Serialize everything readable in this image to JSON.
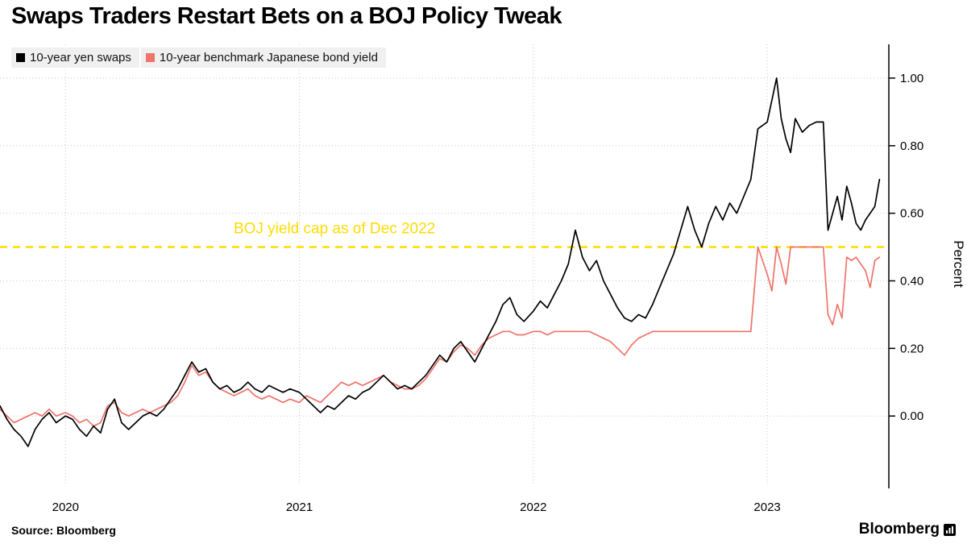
{
  "title": "Swaps Traders Restart Bets on a BOJ Policy Tweak",
  "legend": [
    {
      "label": "10-year yen swaps",
      "color": "#000000"
    },
    {
      "label": "10-year benchmark Japanese bond yield",
      "color": "#f0736c"
    }
  ],
  "source": "Source: Bloomberg",
  "brand": "Bloomberg",
  "colors": {
    "grid": "#c9c9c9",
    "axis": "#000000",
    "annotation_yellow": "#ffdc00"
  },
  "chart_data": {
    "type": "line",
    "title": "Swaps Traders Restart Bets on a BOJ Policy Tweak",
    "xlabel": "",
    "ylabel": "Percent",
    "xlim": [
      2019.72,
      2023.52
    ],
    "ylim": [
      -0.2,
      1.1
    ],
    "xticks": [
      2020,
      2021,
      2022,
      2023
    ],
    "yticks": [
      0.0,
      0.2,
      0.4,
      0.6,
      0.8,
      1.0
    ],
    "grid": true,
    "legend_position": "top-left",
    "reference_line": {
      "value": 0.5,
      "label": "BOJ yield cap as of Dec 2022",
      "label_x": 2021.15,
      "style": "dashed",
      "color": "#ffdc00"
    },
    "series": [
      {
        "name": "10-year yen swaps",
        "color": "#000000",
        "x": [
          2019.72,
          2019.75,
          2019.78,
          2019.81,
          2019.84,
          2019.87,
          2019.9,
          2019.93,
          2019.96,
          2020.0,
          2020.03,
          2020.06,
          2020.09,
          2020.12,
          2020.15,
          2020.18,
          2020.21,
          2020.24,
          2020.27,
          2020.3,
          2020.33,
          2020.36,
          2020.39,
          2020.42,
          2020.45,
          2020.48,
          2020.51,
          2020.54,
          2020.57,
          2020.6,
          2020.63,
          2020.66,
          2020.69,
          2020.72,
          2020.75,
          2020.78,
          2020.81,
          2020.84,
          2020.87,
          2020.9,
          2020.93,
          2020.96,
          2021.0,
          2021.03,
          2021.06,
          2021.09,
          2021.12,
          2021.15,
          2021.18,
          2021.21,
          2021.24,
          2021.27,
          2021.3,
          2021.33,
          2021.36,
          2021.39,
          2021.42,
          2021.45,
          2021.48,
          2021.51,
          2021.54,
          2021.57,
          2021.6,
          2021.63,
          2021.66,
          2021.69,
          2021.72,
          2021.75,
          2021.78,
          2021.81,
          2021.84,
          2021.87,
          2021.9,
          2021.93,
          2021.96,
          2022.0,
          2022.03,
          2022.06,
          2022.09,
          2022.12,
          2022.15,
          2022.18,
          2022.21,
          2022.24,
          2022.27,
          2022.3,
          2022.33,
          2022.36,
          2022.39,
          2022.42,
          2022.45,
          2022.48,
          2022.51,
          2022.54,
          2022.57,
          2022.6,
          2022.63,
          2022.66,
          2022.69,
          2022.72,
          2022.75,
          2022.78,
          2022.81,
          2022.84,
          2022.87,
          2022.9,
          2022.93,
          2022.96,
          2023.0,
          2023.04,
          2023.06,
          2023.08,
          2023.1,
          2023.12,
          2023.15,
          2023.18,
          2023.21,
          2023.24,
          2023.26,
          2023.28,
          2023.3,
          2023.32,
          2023.34,
          2023.36,
          2023.38,
          2023.4,
          2023.42,
          2023.44,
          2023.46,
          2023.48
        ],
        "y": [
          0.03,
          -0.01,
          -0.04,
          -0.06,
          -0.09,
          -0.04,
          -0.01,
          0.01,
          -0.02,
          0.0,
          -0.01,
          -0.04,
          -0.06,
          -0.03,
          -0.05,
          0.02,
          0.05,
          -0.02,
          -0.04,
          -0.02,
          0.0,
          0.01,
          0.0,
          0.02,
          0.05,
          0.08,
          0.12,
          0.16,
          0.13,
          0.14,
          0.1,
          0.08,
          0.09,
          0.07,
          0.08,
          0.1,
          0.08,
          0.07,
          0.09,
          0.08,
          0.07,
          0.08,
          0.07,
          0.05,
          0.03,
          0.01,
          0.03,
          0.02,
          0.04,
          0.06,
          0.05,
          0.07,
          0.08,
          0.1,
          0.12,
          0.1,
          0.08,
          0.09,
          0.08,
          0.1,
          0.12,
          0.15,
          0.18,
          0.16,
          0.2,
          0.22,
          0.19,
          0.16,
          0.2,
          0.24,
          0.28,
          0.33,
          0.35,
          0.3,
          0.28,
          0.31,
          0.34,
          0.32,
          0.36,
          0.4,
          0.45,
          0.55,
          0.47,
          0.43,
          0.46,
          0.4,
          0.36,
          0.32,
          0.29,
          0.28,
          0.3,
          0.29,
          0.33,
          0.38,
          0.43,
          0.48,
          0.55,
          0.62,
          0.55,
          0.5,
          0.57,
          0.62,
          0.58,
          0.63,
          0.6,
          0.65,
          0.7,
          0.85,
          0.87,
          1.0,
          0.88,
          0.82,
          0.78,
          0.88,
          0.84,
          0.86,
          0.87,
          0.87,
          0.55,
          0.6,
          0.65,
          0.58,
          0.68,
          0.63,
          0.57,
          0.55,
          0.58,
          0.6,
          0.62,
          0.7
        ]
      },
      {
        "name": "10-year benchmark Japanese bond yield",
        "color": "#f0736c",
        "x": [
          2019.72,
          2019.75,
          2019.78,
          2019.81,
          2019.84,
          2019.87,
          2019.9,
          2019.93,
          2019.96,
          2020.0,
          2020.03,
          2020.06,
          2020.09,
          2020.12,
          2020.15,
          2020.18,
          2020.21,
          2020.24,
          2020.27,
          2020.3,
          2020.33,
          2020.36,
          2020.39,
          2020.42,
          2020.45,
          2020.48,
          2020.51,
          2020.54,
          2020.57,
          2020.6,
          2020.63,
          2020.66,
          2020.69,
          2020.72,
          2020.75,
          2020.78,
          2020.81,
          2020.84,
          2020.87,
          2020.9,
          2020.93,
          2020.96,
          2021.0,
          2021.03,
          2021.06,
          2021.09,
          2021.12,
          2021.15,
          2021.18,
          2021.21,
          2021.24,
          2021.27,
          2021.3,
          2021.33,
          2021.36,
          2021.39,
          2021.42,
          2021.45,
          2021.48,
          2021.51,
          2021.54,
          2021.57,
          2021.6,
          2021.63,
          2021.66,
          2021.69,
          2021.72,
          2021.75,
          2021.78,
          2021.81,
          2021.84,
          2021.87,
          2021.9,
          2021.93,
          2021.96,
          2022.0,
          2022.03,
          2022.06,
          2022.09,
          2022.12,
          2022.15,
          2022.18,
          2022.21,
          2022.24,
          2022.27,
          2022.3,
          2022.33,
          2022.36,
          2022.39,
          2022.42,
          2022.45,
          2022.48,
          2022.51,
          2022.54,
          2022.57,
          2022.6,
          2022.63,
          2022.66,
          2022.69,
          2022.72,
          2022.75,
          2022.78,
          2022.81,
          2022.84,
          2022.87,
          2022.9,
          2022.93,
          2022.96,
          2023.0,
          2023.02,
          2023.04,
          2023.06,
          2023.08,
          2023.1,
          2023.12,
          2023.15,
          2023.18,
          2023.21,
          2023.24,
          2023.26,
          2023.28,
          2023.3,
          2023.32,
          2023.34,
          2023.36,
          2023.38,
          2023.4,
          2023.42,
          2023.44,
          2023.46,
          2023.48
        ],
        "y": [
          0.02,
          0.0,
          -0.02,
          -0.01,
          0.0,
          0.01,
          0.0,
          0.02,
          0.0,
          0.01,
          0.0,
          -0.02,
          -0.01,
          -0.03,
          -0.02,
          0.03,
          0.04,
          0.01,
          0.0,
          0.01,
          0.02,
          0.01,
          0.02,
          0.03,
          0.04,
          0.06,
          0.1,
          0.15,
          0.12,
          0.13,
          0.1,
          0.08,
          0.07,
          0.06,
          0.07,
          0.08,
          0.06,
          0.05,
          0.06,
          0.05,
          0.04,
          0.05,
          0.04,
          0.06,
          0.05,
          0.04,
          0.06,
          0.08,
          0.1,
          0.09,
          0.1,
          0.09,
          0.1,
          0.11,
          0.12,
          0.1,
          0.09,
          0.08,
          0.08,
          0.09,
          0.11,
          0.14,
          0.17,
          0.16,
          0.19,
          0.21,
          0.2,
          0.18,
          0.21,
          0.23,
          0.24,
          0.25,
          0.25,
          0.24,
          0.24,
          0.25,
          0.25,
          0.24,
          0.25,
          0.25,
          0.25,
          0.25,
          0.25,
          0.25,
          0.24,
          0.23,
          0.22,
          0.2,
          0.18,
          0.21,
          0.23,
          0.24,
          0.25,
          0.25,
          0.25,
          0.25,
          0.25,
          0.25,
          0.25,
          0.25,
          0.25,
          0.25,
          0.25,
          0.25,
          0.25,
          0.25,
          0.25,
          0.5,
          0.42,
          0.37,
          0.5,
          0.45,
          0.39,
          0.5,
          0.5,
          0.5,
          0.5,
          0.5,
          0.5,
          0.3,
          0.27,
          0.33,
          0.29,
          0.47,
          0.46,
          0.47,
          0.45,
          0.43,
          0.38,
          0.46,
          0.47
        ]
      }
    ]
  }
}
